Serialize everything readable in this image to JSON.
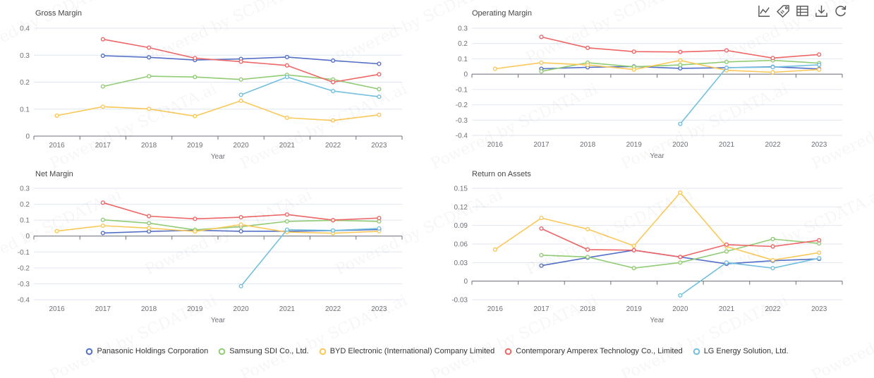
{
  "toolbox": {
    "icons": [
      "line-chart-icon",
      "tag-icon",
      "data-view-icon",
      "download-icon",
      "restore-icon"
    ]
  },
  "watermark": {
    "text": "Powered by SCDATA.ai"
  },
  "legend": {
    "items": [
      {
        "name": "Panasonic Holdings Corporation",
        "color": "#5470c6"
      },
      {
        "name": "Samsung SDI Co., Ltd.",
        "color": "#91cc75"
      },
      {
        "name": "BYD Electronic (International) Company Limited",
        "color": "#fac858"
      },
      {
        "name": "Contemporary Amperex Technology Co., Limited",
        "color": "#ee6666"
      },
      {
        "name": "LG Energy Solution, Ltd.",
        "color": "#73c0de"
      }
    ]
  },
  "chart_data": [
    {
      "type": "line",
      "title": "Gross Margin",
      "xlabel": "Year",
      "ylabel": "",
      "categories": [
        "2016",
        "2017",
        "2018",
        "2019",
        "2020",
        "2021",
        "2022",
        "2023"
      ],
      "ylim": [
        0,
        0.4
      ],
      "yticks": [
        "0",
        "0.1",
        "0.2",
        "0.3",
        "0.4"
      ],
      "grid": true,
      "series": [
        {
          "name": "Panasonic Holdings Corporation",
          "values": [
            null,
            0.298,
            0.292,
            0.282,
            0.286,
            0.293,
            0.28,
            0.268
          ]
        },
        {
          "name": "Samsung SDI Co., Ltd.",
          "values": [
            null,
            0.184,
            0.222,
            0.219,
            0.21,
            0.227,
            0.21,
            0.174
          ]
        },
        {
          "name": "BYD Electronic (International) Company Limited",
          "values": [
            0.076,
            0.109,
            0.101,
            0.074,
            0.131,
            0.068,
            0.058,
            0.079
          ]
        },
        {
          "name": "Contemporary Amperex Technology Co., Limited",
          "values": [
            null,
            0.359,
            0.328,
            0.289,
            0.276,
            0.262,
            0.2,
            0.229
          ]
        },
        {
          "name": "LG Energy Solution, Ltd.",
          "values": [
            null,
            null,
            null,
            null,
            0.153,
            0.219,
            0.167,
            0.146
          ]
        }
      ]
    },
    {
      "type": "line",
      "title": "Operating Margin",
      "xlabel": "Year",
      "ylabel": "",
      "categories": [
        "2016",
        "2017",
        "2018",
        "2019",
        "2020",
        "2021",
        "2022",
        "2023"
      ],
      "ylim": [
        -0.4,
        0.3
      ],
      "yticks": [
        "-0.4",
        "-0.3",
        "-0.2",
        "-0.1",
        "0",
        "0.1",
        "0.2",
        "0.3"
      ],
      "grid": true,
      "series": [
        {
          "name": "Panasonic Holdings Corporation",
          "values": [
            null,
            0.035,
            0.045,
            0.05,
            0.038,
            0.042,
            0.048,
            0.034
          ]
        },
        {
          "name": "Samsung SDI Co., Ltd.",
          "values": [
            null,
            0.018,
            0.075,
            0.048,
            0.06,
            0.08,
            0.09,
            0.072
          ]
        },
        {
          "name": "BYD Electronic (International) Company Limited",
          "values": [
            0.035,
            0.075,
            0.06,
            0.03,
            0.09,
            0.025,
            0.012,
            0.03
          ]
        },
        {
          "name": "Contemporary Amperex Technology Co., Limited",
          "values": [
            null,
            0.243,
            0.172,
            0.147,
            0.145,
            0.155,
            0.105,
            0.128
          ]
        },
        {
          "name": "LG Energy Solution, Ltd.",
          "values": [
            null,
            null,
            null,
            null,
            -0.325,
            0.042,
            0.046,
            0.061
          ]
        }
      ]
    },
    {
      "type": "line",
      "title": "Net Margin",
      "xlabel": "Year",
      "ylabel": "",
      "categories": [
        "2016",
        "2017",
        "2018",
        "2019",
        "2020",
        "2021",
        "2022",
        "2023"
      ],
      "ylim": [
        -0.4,
        0.3
      ],
      "yticks": [
        "-0.4",
        "-0.3",
        "-0.2",
        "-0.1",
        "0",
        "0.1",
        "0.2",
        "0.3"
      ],
      "grid": true,
      "series": [
        {
          "name": "Panasonic Holdings Corporation",
          "values": [
            null,
            0.019,
            0.029,
            0.036,
            0.03,
            0.03,
            0.034,
            0.041
          ]
        },
        {
          "name": "Samsung SDI Co., Ltd.",
          "values": [
            null,
            0.102,
            0.081,
            0.039,
            0.059,
            0.092,
            0.099,
            0.092
          ]
        },
        {
          "name": "BYD Electronic (International) Company Limited",
          "values": [
            0.031,
            0.065,
            0.05,
            0.029,
            0.072,
            0.025,
            0.018,
            0.03
          ]
        },
        {
          "name": "Contemporary Amperex Technology Co., Limited",
          "values": [
            null,
            0.21,
            0.125,
            0.108,
            0.118,
            0.135,
            0.1,
            0.113
          ]
        },
        {
          "name": "LG Energy Solution, Ltd.",
          "values": [
            null,
            null,
            null,
            null,
            -0.315,
            0.04,
            0.035,
            0.048
          ]
        }
      ]
    },
    {
      "type": "line",
      "title": "Return on Assets",
      "xlabel": "Year",
      "ylabel": "",
      "categories": [
        "2016",
        "2017",
        "2018",
        "2019",
        "2020",
        "2021",
        "2022",
        "2023"
      ],
      "ylim": [
        -0.03,
        0.15
      ],
      "yticks": [
        "-0.03",
        "0",
        "0.03",
        "0.06",
        "0.09",
        "0.12",
        "0.15"
      ],
      "grid": true,
      "series": [
        {
          "name": "Panasonic Holdings Corporation",
          "values": [
            null,
            0.025,
            0.038,
            0.05,
            0.039,
            0.028,
            0.033,
            0.036
          ]
        },
        {
          "name": "Samsung SDI Co., Ltd.",
          "values": [
            null,
            0.042,
            0.039,
            0.021,
            0.03,
            0.048,
            0.068,
            0.061
          ]
        },
        {
          "name": "BYD Electronic (International) Company Limited",
          "values": [
            0.051,
            0.102,
            0.084,
            0.057,
            0.143,
            0.056,
            0.034,
            0.046
          ]
        },
        {
          "name": "Contemporary Amperex Technology Co., Limited",
          "values": [
            null,
            0.085,
            0.051,
            0.05,
            0.039,
            0.059,
            0.056,
            0.066
          ]
        },
        {
          "name": "LG Energy Solution, Ltd.",
          "values": [
            null,
            null,
            null,
            null,
            -0.023,
            0.03,
            0.021,
            0.037
          ]
        }
      ]
    }
  ]
}
